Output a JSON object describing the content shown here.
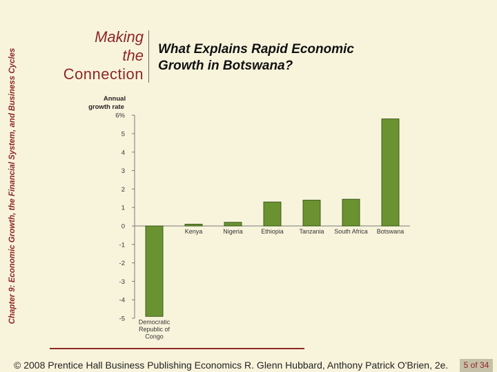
{
  "side_caption": "Chapter 9: Economic Growth, the Financial System, and Business Cycles",
  "header": {
    "mtc_line1": "Making",
    "mtc_line2": "the",
    "mtc_line3": "Connection",
    "title_line1": "What Explains Rapid Economic",
    "title_line2": "Growth in Botswana?",
    "accent_color": "#8e2626"
  },
  "chart_data": {
    "type": "bar",
    "ylabel_line1": "Annual",
    "ylabel_line2": "growth rate",
    "ylim": [
      -5,
      6
    ],
    "yticks": [
      {
        "value": 6,
        "label": "6%"
      },
      {
        "value": 5,
        "label": "5"
      },
      {
        "value": 4,
        "label": "4"
      },
      {
        "value": 3,
        "label": "3"
      },
      {
        "value": 2,
        "label": "2"
      },
      {
        "value": 1,
        "label": "1"
      },
      {
        "value": 0,
        "label": "0"
      },
      {
        "value": -1,
        "label": "-1"
      },
      {
        "value": -2,
        "label": "-2"
      },
      {
        "value": -3,
        "label": "-3"
      },
      {
        "value": -4,
        "label": "-4"
      },
      {
        "value": -5,
        "label": "-5"
      }
    ],
    "categories": [
      [
        "Democratic",
        "Republic of",
        "Congo"
      ],
      [
        "Kenya"
      ],
      [
        "Nigeria"
      ],
      [
        "Ethiopia"
      ],
      [
        "Tanzania"
      ],
      [
        "South Africa"
      ],
      [
        "Botswana"
      ]
    ],
    "values": [
      -4.9,
      0.1,
      0.2,
      1.3,
      1.4,
      1.45,
      5.8
    ],
    "bar_color": "#6a9230",
    "grid": false
  },
  "footer": {
    "text": "© 2008 Prentice Hall Business Publishing   Economics  R. Glenn Hubbard, Anthony Patrick O'Brien, 2e.",
    "page_current": "5",
    "page_of": "of",
    "page_total": "34"
  }
}
